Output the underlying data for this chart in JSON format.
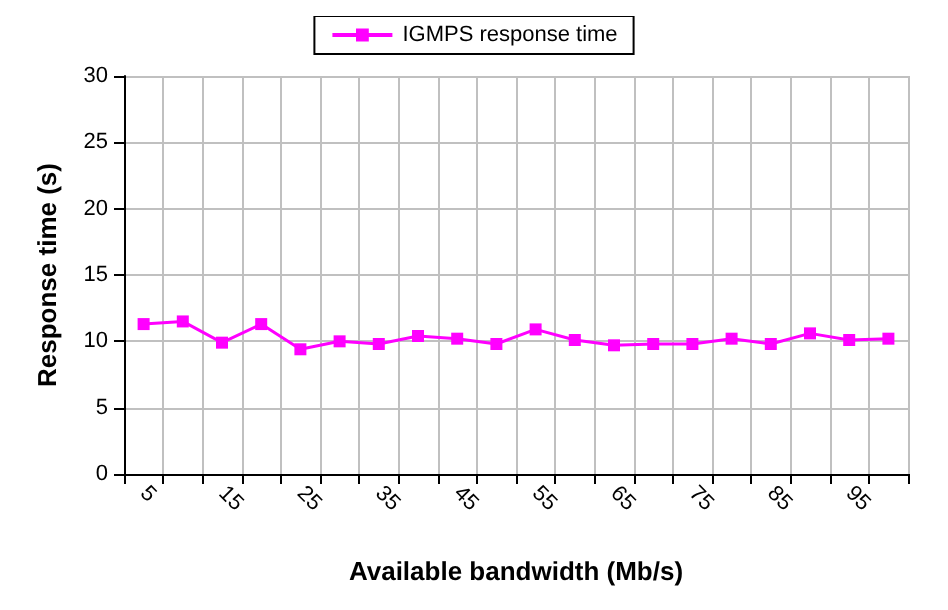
{
  "chart_data": {
    "type": "line",
    "xlabel": "Available bandwidth (Mb/s)",
    "ylabel": "Response time (s)",
    "categories": [
      "5",
      null,
      "15",
      null,
      "25",
      null,
      "35",
      null,
      "45",
      null,
      "55",
      null,
      "65",
      null,
      "75",
      null,
      "85",
      null,
      "95",
      null
    ],
    "series": [
      {
        "name": "IGMPS response time",
        "color": "#ff00ff",
        "values": [
          11.3,
          11.5,
          9.9,
          11.3,
          9.4,
          10.0,
          9.8,
          10.4,
          10.2,
          9.8,
          10.9,
          10.1,
          9.7,
          9.8,
          9.8,
          10.2,
          9.8,
          10.6,
          10.1,
          10.2
        ]
      }
    ],
    "ylim": [
      0,
      30
    ],
    "yticks": [
      0,
      5,
      10,
      15,
      20,
      25,
      30
    ],
    "grid": true,
    "legend": "top",
    "marker": "square",
    "line_style": "solid"
  }
}
